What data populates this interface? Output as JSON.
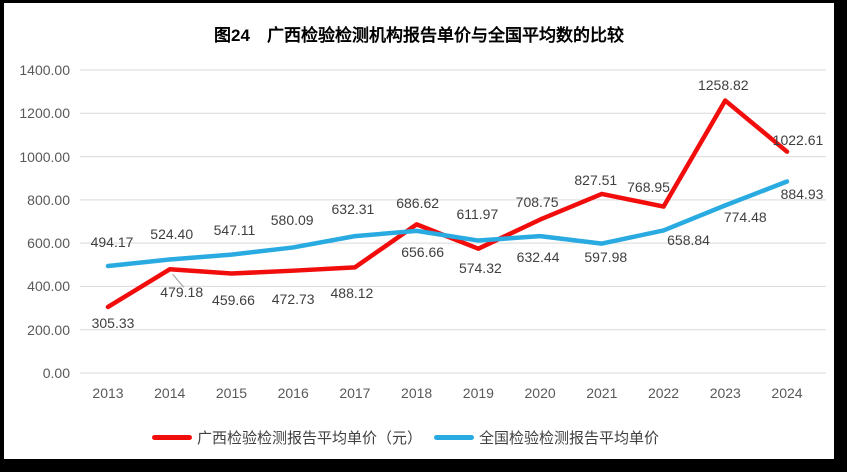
{
  "title": "图24　广西检验检测机构报告单价与全国平均数的比较",
  "chart_data": {
    "type": "line",
    "x_labels": [
      "2013",
      "2014",
      "2015",
      "2016",
      "2017",
      "2018",
      "2019",
      "2020",
      "2021",
      "2022",
      "2023",
      "2024"
    ],
    "series": [
      {
        "id": "guangxi",
        "name": "广西检验检测报告平均单价（元）",
        "color": "#F20D0D",
        "values": [
          305.33,
          479.18,
          459.66,
          472.73,
          488.12,
          686.62,
          574.32,
          708.75,
          827.51,
          768.95,
          1258.82,
          1022.61
        ],
        "labels": [
          "305.33",
          "479.18",
          "459.66",
          "472.73",
          "488.12",
          "686.62",
          "574.32",
          "708.75",
          "827.51",
          "768.95",
          "1258.82",
          "1022.61"
        ]
      },
      {
        "id": "national",
        "name": "全国检验检测报告平均单价",
        "color": "#29ABE2",
        "values": [
          494.17,
          524.4,
          547.11,
          580.09,
          632.31,
          656.66,
          611.97,
          632.44,
          597.98,
          658.84,
          774.48,
          884.93
        ],
        "labels": [
          "494.17",
          "524.40",
          "547.11",
          "580.09",
          "632.31",
          "656.66",
          "611.97",
          "632.44",
          "597.98",
          "658.84",
          "774.48",
          "884.93"
        ]
      }
    ],
    "ylim": [
      0,
      1400
    ],
    "ytick_step": 200,
    "ytick_labels": [
      "0.00",
      "200.00",
      "400.00",
      "600.00",
      "800.00",
      "1000.00",
      "1200.00",
      "1400.00"
    ],
    "grid": true,
    "legend_position": "bottom",
    "colors": {
      "gridline": "#D9D9D9",
      "axis_text": "#595959",
      "data_label_text": "#3F3F3F",
      "leader_line": "#A6A6A6",
      "frame": "#000000",
      "background": "#FFFFFF",
      "title_text": "#000000"
    }
  }
}
